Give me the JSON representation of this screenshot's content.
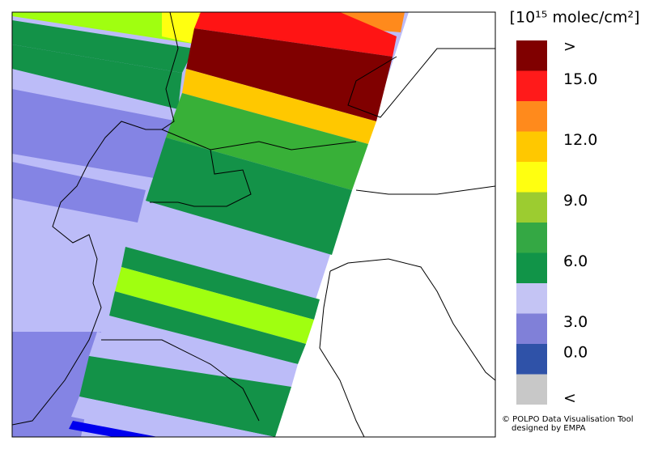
{
  "legend": {
    "title": "[10¹⁵ molec/cm²]",
    "labels": [
      ">",
      "15.0",
      "12.0",
      "9.0",
      "6.0",
      "3.0",
      "0.0",
      "<"
    ],
    "colors": [
      "#800000",
      "#ff1a1a",
      "#ff8a1c",
      "#ffc800",
      "#ffff10",
      "#9ccc30",
      "#34a844",
      "#119448",
      "#c4c4f4",
      "#8080d8",
      "#2f52a8",
      "#c8c8c8"
    ]
  },
  "credit": [
    "© POLPO Data Visualisation Tool",
    "designed by EMPA"
  ]
}
